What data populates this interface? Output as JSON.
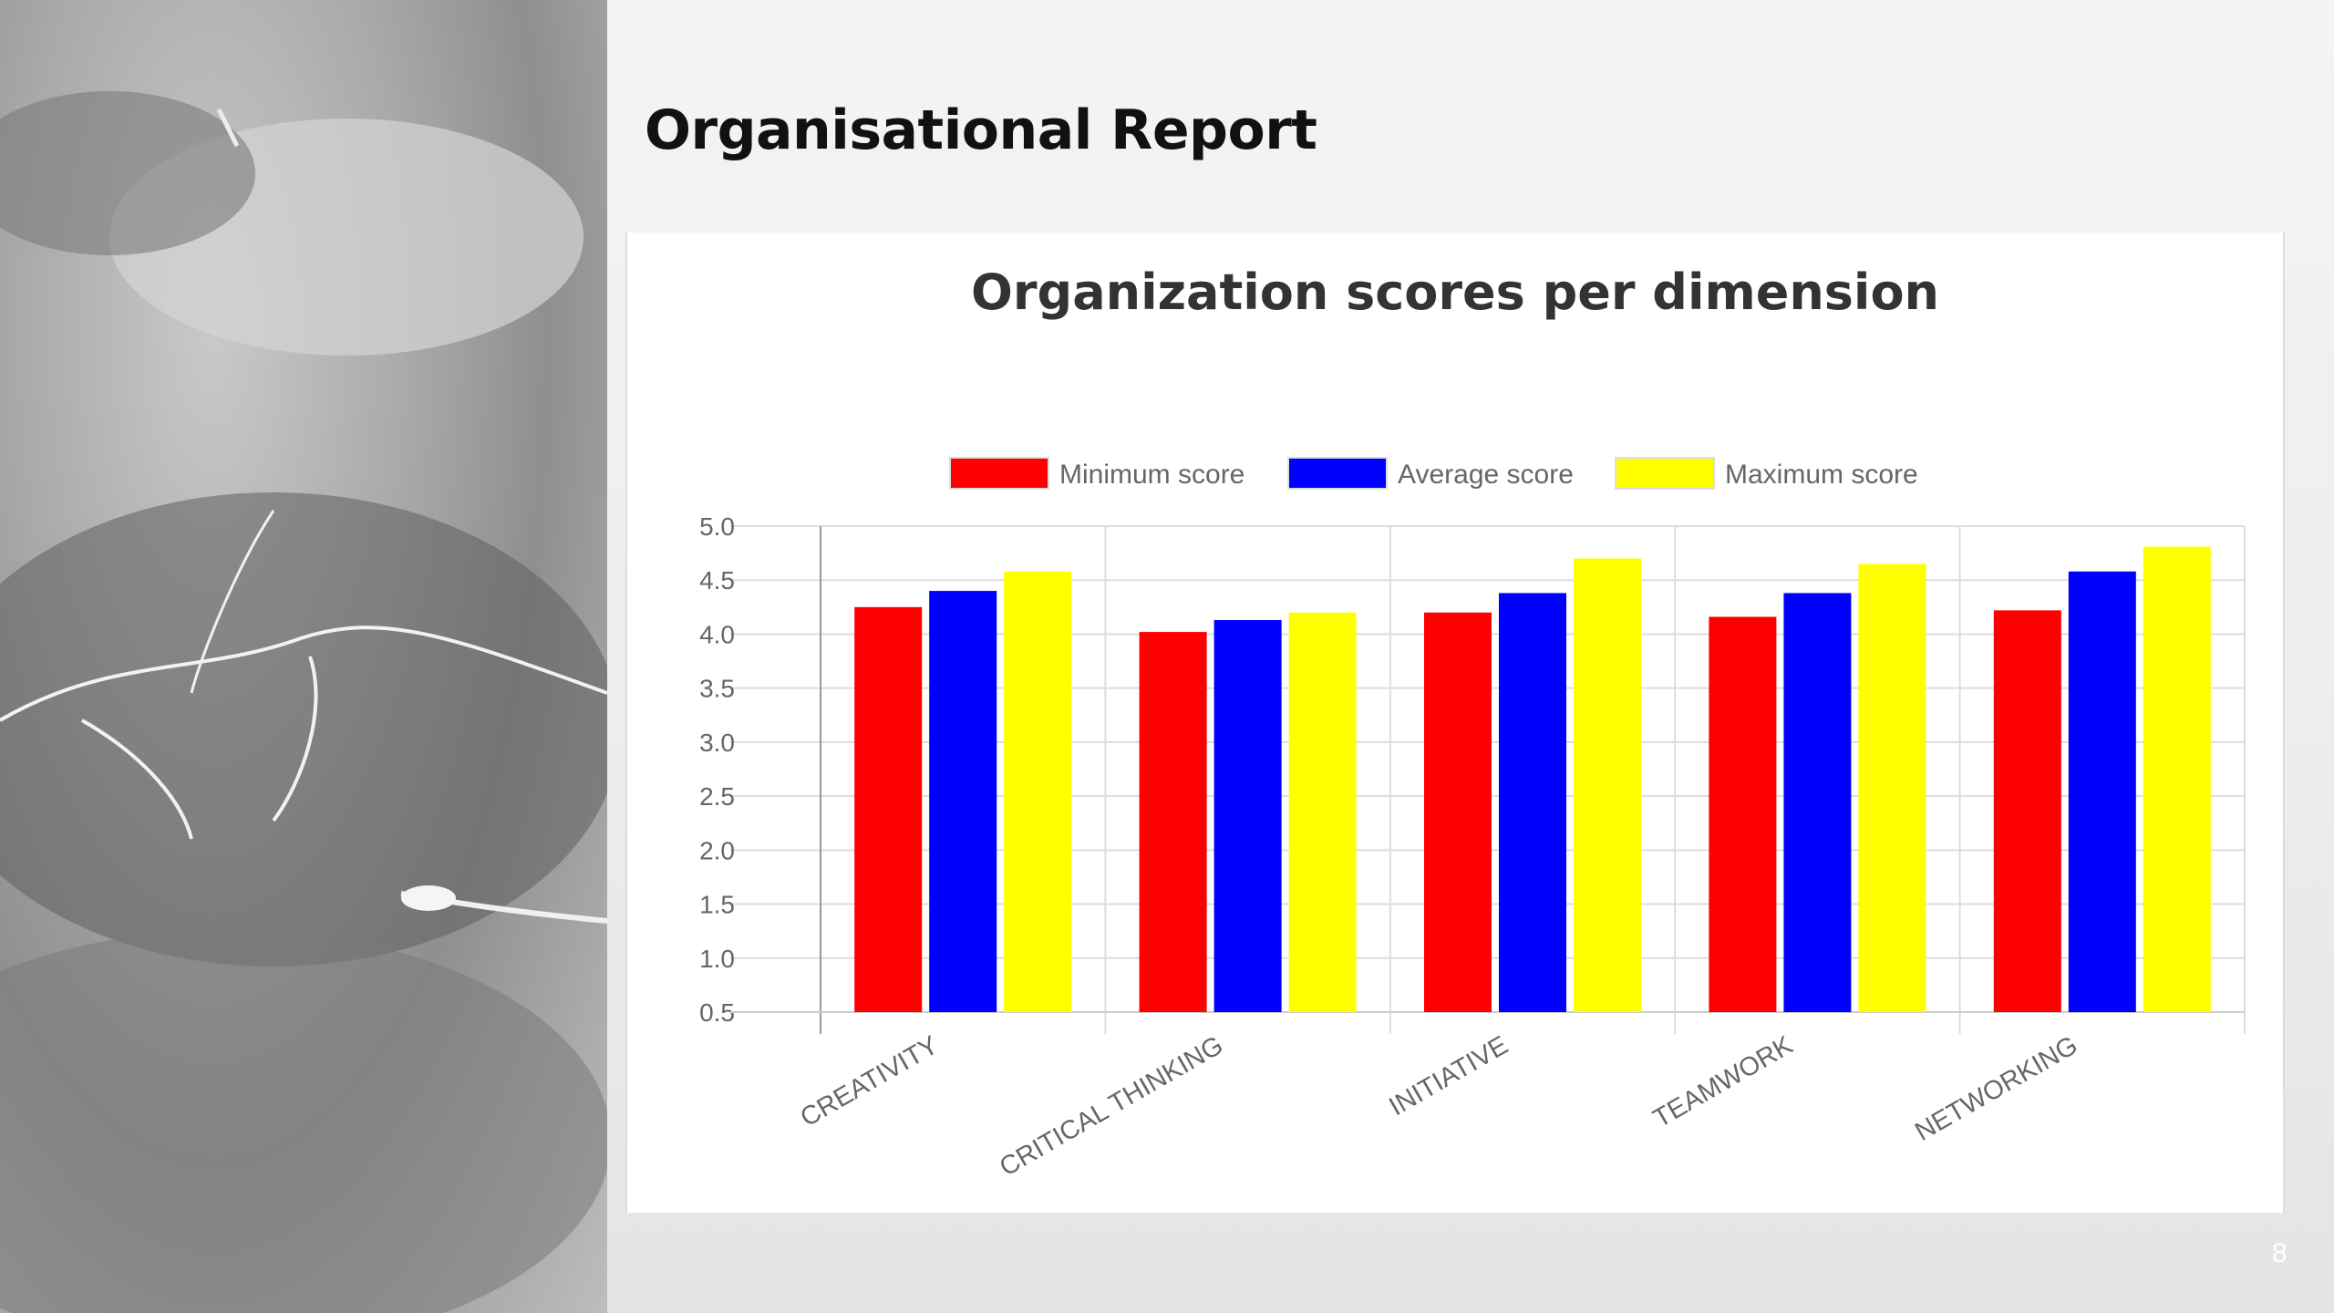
{
  "slide": {
    "title": "Organisational Report",
    "page_number": "8"
  },
  "background_image": {
    "description_icon": "photo-background-icon"
  },
  "chart_data": {
    "type": "bar",
    "title": "Organization scores per dimension",
    "categories": [
      "CREATIVITY",
      "CRITICAL THINKING",
      "INITIATIVE",
      "TEAMWORK",
      "NETWORKING"
    ],
    "series": [
      {
        "name": "Minimum score",
        "color": "#ff0000",
        "values": [
          4.25,
          4.02,
          4.2,
          4.16,
          4.22
        ]
      },
      {
        "name": "Average score",
        "color": "#0000ff",
        "values": [
          4.4,
          4.13,
          4.38,
          4.38,
          4.58
        ]
      },
      {
        "name": "Maximum score",
        "color": "#ffff00",
        "values": [
          4.58,
          4.2,
          4.7,
          4.65,
          4.81
        ]
      }
    ],
    "yticks": [
      "5.0",
      "4.5",
      "4.0",
      "3.5",
      "3.0",
      "2.5",
      "2.0",
      "1.5",
      "1.0",
      "0.5"
    ],
    "ylim": [
      0.5,
      5.0
    ],
    "grid": true,
    "legend_position": "top-center"
  }
}
